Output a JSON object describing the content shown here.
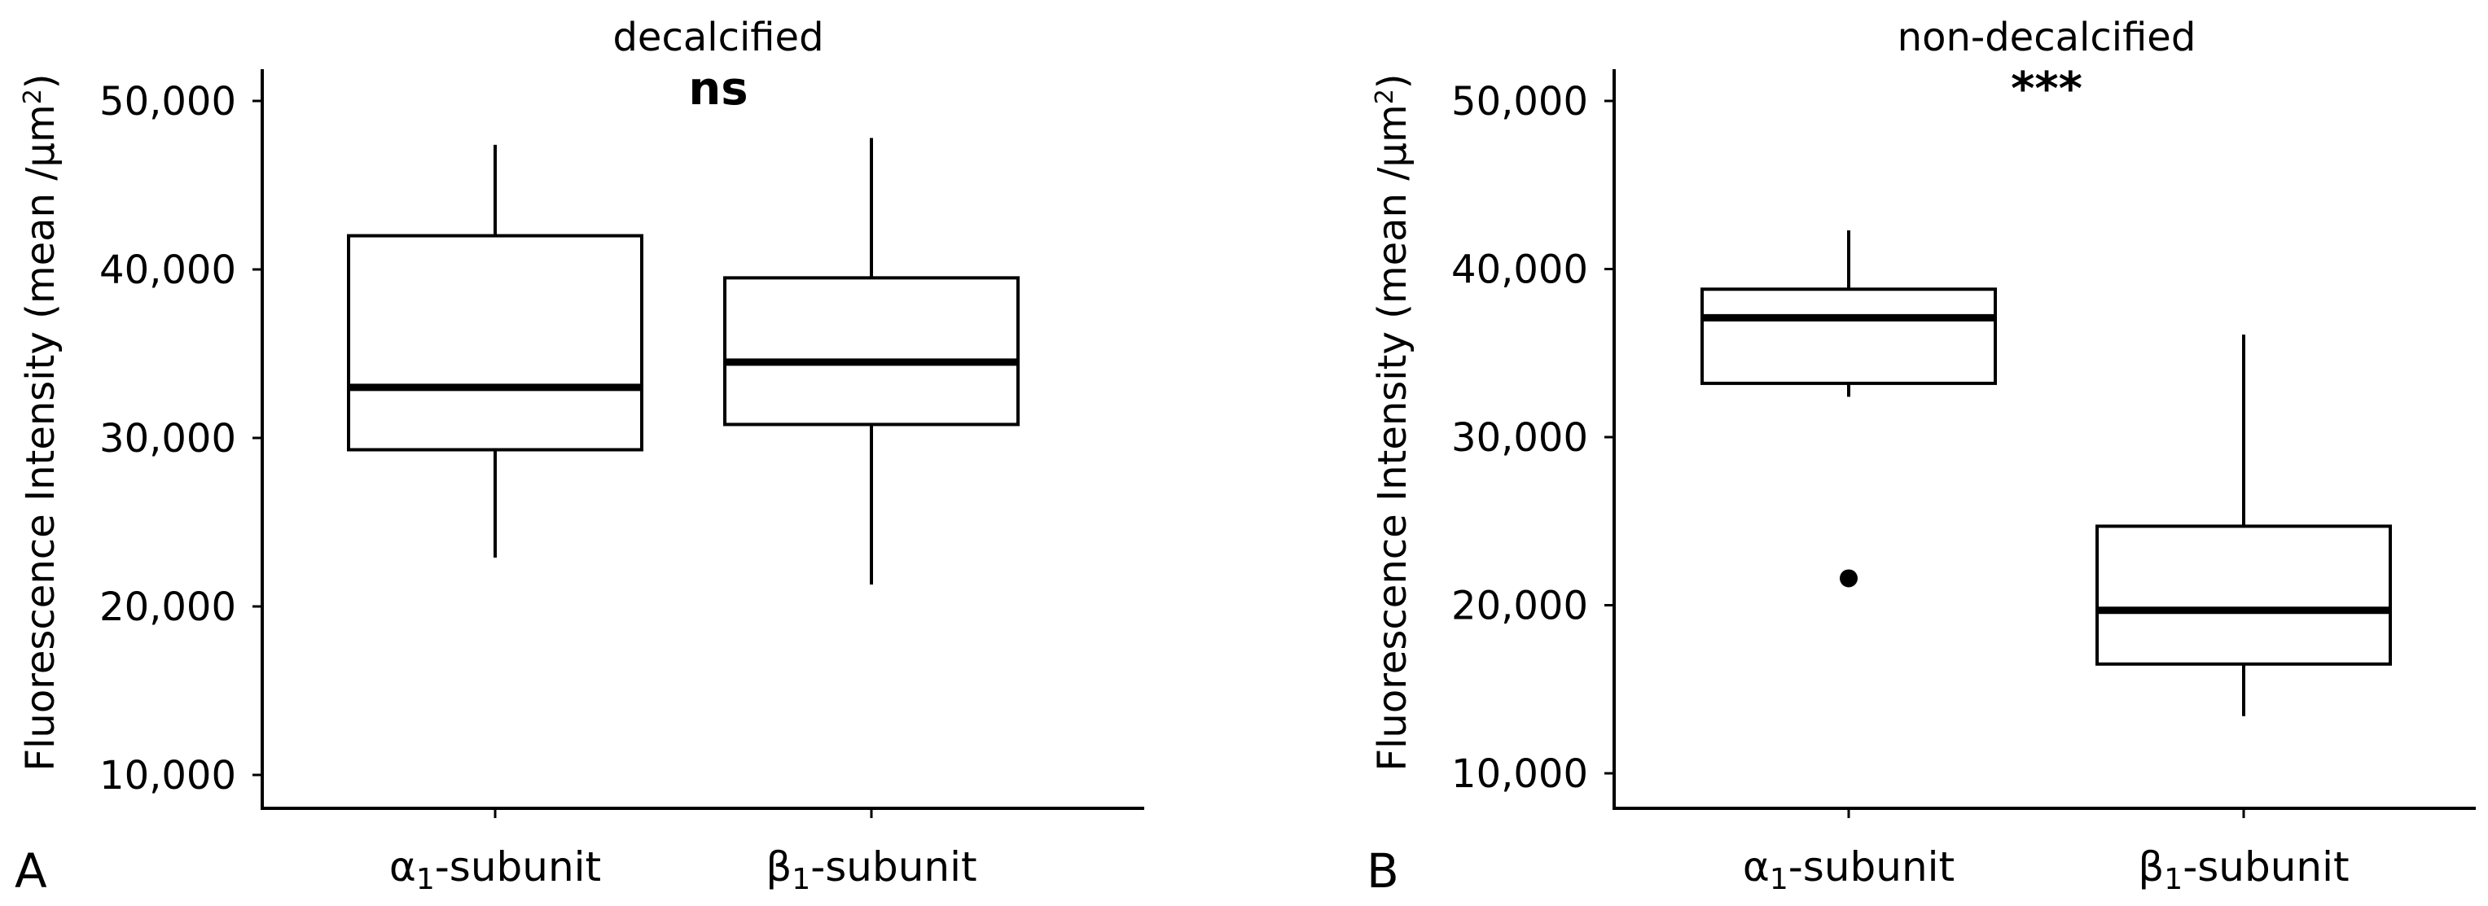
{
  "chart_data": [
    {
      "type": "box",
      "panel_label": "A",
      "title": "decalcified",
      "significance": "ns",
      "ylabel": "Fluorescence Intensity (mean /µm²)",
      "ylim": [
        8000,
        52000
      ],
      "yticks": [
        10000,
        20000,
        30000,
        40000,
        50000
      ],
      "ytick_labels": [
        "10,000",
        "20,000",
        "30,000",
        "40,000",
        "50,000"
      ],
      "categories": [
        {
          "base": "α",
          "sub": "1",
          "rest": "-subunit"
        },
        {
          "base": "β",
          "sub": "1",
          "rest": "-subunit"
        }
      ],
      "boxes": [
        {
          "whisker_low": 22900,
          "q1": 29300,
          "median": 33000,
          "q3": 42000,
          "whisker_high": 47400,
          "outliers": []
        },
        {
          "whisker_low": 21300,
          "q1": 30800,
          "median": 34500,
          "q3": 39500,
          "whisker_high": 47800,
          "outliers": []
        }
      ]
    },
    {
      "type": "box",
      "panel_label": "B",
      "title": "non-decalcified",
      "significance": "***",
      "ylabel": "Fluorescence Intensity (mean /µm²)",
      "ylim": [
        8000,
        52000
      ],
      "yticks": [
        10000,
        20000,
        30000,
        40000,
        50000
      ],
      "ytick_labels": [
        "10,000",
        "20,000",
        "30,000",
        "40,000",
        "50,000"
      ],
      "categories": [
        {
          "base": "α",
          "sub": "1",
          "rest": "-subunit"
        },
        {
          "base": "β",
          "sub": "1",
          "rest": "-subunit"
        }
      ],
      "boxes": [
        {
          "whisker_low": 32400,
          "q1": 33200,
          "median": 37100,
          "q3": 38800,
          "whisker_high": 42300,
          "outliers": [
            21600
          ]
        },
        {
          "whisker_low": 13400,
          "q1": 16500,
          "median": 19700,
          "q3": 24700,
          "whisker_high": 36100,
          "outliers": []
        }
      ]
    }
  ]
}
